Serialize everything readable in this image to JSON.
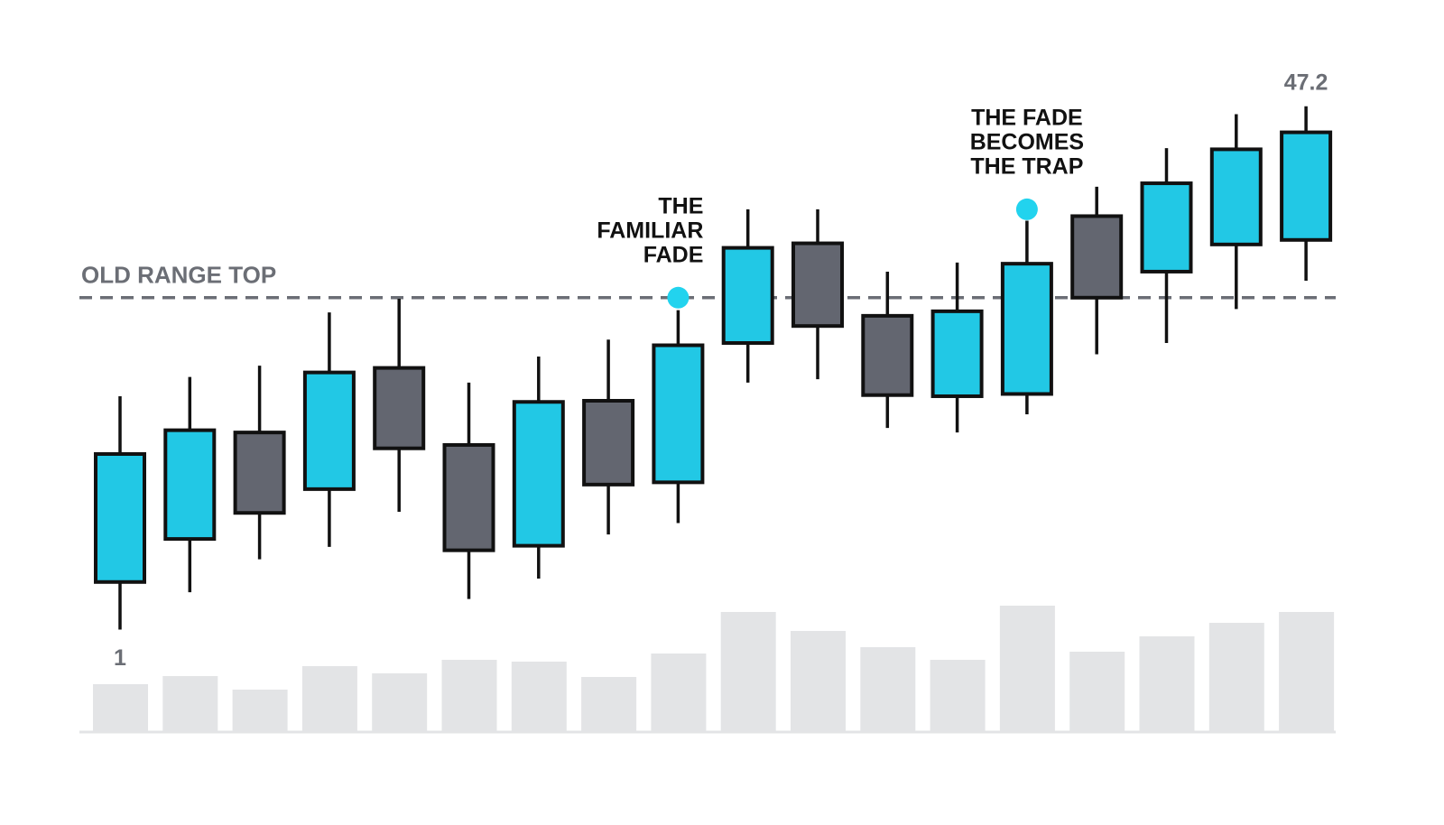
{
  "chart_data": {
    "type": "candlestick",
    "open": [
      5.2,
      9.0,
      18.4,
      13.4,
      24.1,
      17.3,
      8.4,
      21.2,
      14.0,
      26.3,
      35.1,
      28.7,
      21.6,
      21.8,
      37.5,
      32.6,
      35.0,
      35.4
    ],
    "high": [
      21.6,
      23.3,
      24.3,
      29.0,
      30.2,
      22.8,
      25.1,
      26.6,
      29.2,
      38.1,
      38.1,
      32.6,
      33.4,
      37.1,
      40.1,
      43.5,
      46.5,
      47.2
    ],
    "low": [
      1,
      4.3,
      7.2,
      8.3,
      11.4,
      3.7,
      5.5,
      9.4,
      10.4,
      22.8,
      23.1,
      18.8,
      18.4,
      20.0,
      25.3,
      26.3,
      29.3,
      31.8
    ],
    "close": [
      16.5,
      18.6,
      11.3,
      23.7,
      17.0,
      8.0,
      21.1,
      13.8,
      26.1,
      34.7,
      27.8,
      21.7,
      29.1,
      33.3,
      30.3,
      40.4,
      43.4,
      44.9
    ],
    "up_color": "#22c8e5",
    "down_color": "#636670",
    "ylim": [
      0.8,
      51.8
    ],
    "volume": {
      "values": [
        52,
        61,
        46,
        72,
        64,
        79,
        77,
        60,
        86,
        132,
        111,
        93,
        79,
        139,
        88,
        105,
        120,
        132
      ],
      "color": "#e3e4e6",
      "ylim": [
        0,
        140
      ]
    },
    "range_line": {
      "label": "OLD RANGE TOP",
      "value": 30.3,
      "color": "#6b6e75"
    },
    "annotations": [
      {
        "lines": [
          "THE",
          "FAMILIAR",
          "FADE"
        ],
        "index": 8,
        "value": 30.3,
        "color": "#22d3ee"
      },
      {
        "lines": [
          "THE FADE",
          "BECOMES",
          "THE TRAP"
        ],
        "index": 13,
        "value": 38.1,
        "color": "#22d3ee"
      }
    ]
  }
}
